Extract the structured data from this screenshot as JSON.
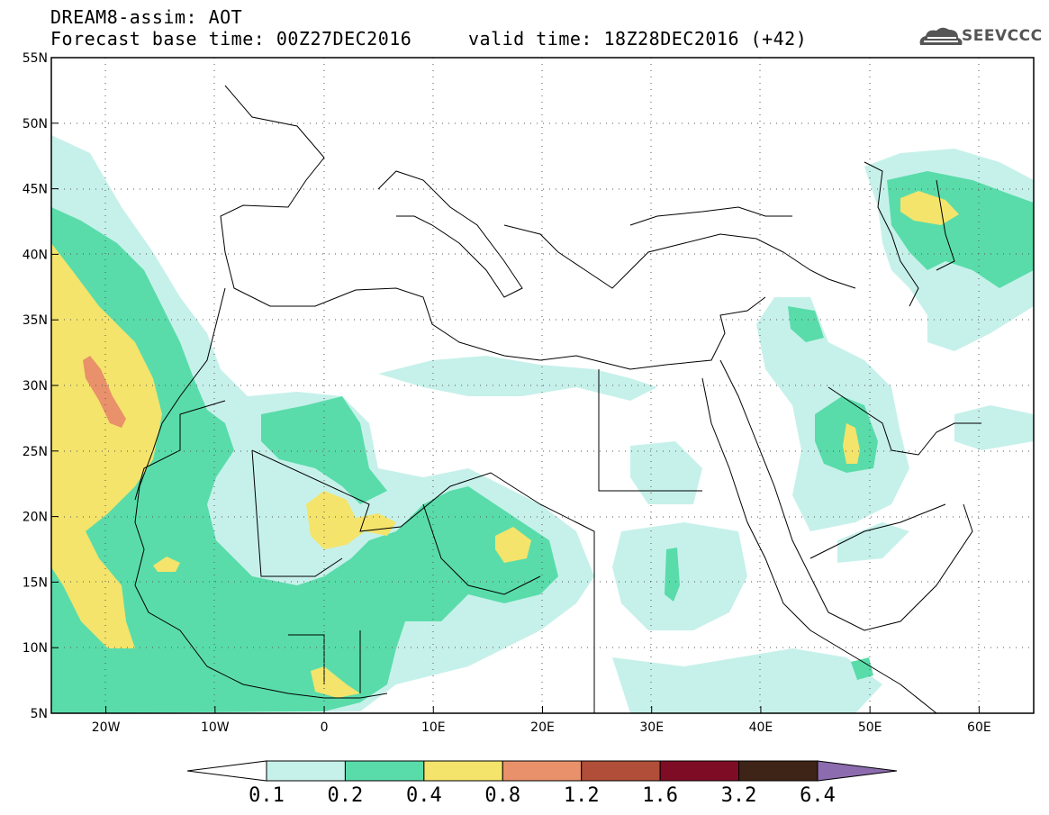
{
  "title_line1": "DREAM8-assim: AOT",
  "title_line2": "Forecast base time: 00Z27DEC2016     valid time: 18Z28DEC2016 (+42)",
  "logo_text": "SEEVCCC",
  "map": {
    "lon_range": [
      -25,
      65
    ],
    "lat_range": [
      5,
      55
    ],
    "lon_ticks": [
      {
        "value": -20,
        "label": "20W"
      },
      {
        "value": -10,
        "label": "10W"
      },
      {
        "value": 0,
        "label": "0"
      },
      {
        "value": 10,
        "label": "10E"
      },
      {
        "value": 20,
        "label": "20E"
      },
      {
        "value": 30,
        "label": "30E"
      },
      {
        "value": 40,
        "label": "40E"
      },
      {
        "value": 50,
        "label": "50E"
      },
      {
        "value": 60,
        "label": "60E"
      }
    ],
    "lat_ticks": [
      {
        "value": 5,
        "label": "5N"
      },
      {
        "value": 10,
        "label": "10N"
      },
      {
        "value": 15,
        "label": "15N"
      },
      {
        "value": 20,
        "label": "20N"
      },
      {
        "value": 25,
        "label": "25N"
      },
      {
        "value": 30,
        "label": "30N"
      },
      {
        "value": 35,
        "label": "35N"
      },
      {
        "value": 40,
        "label": "40N"
      },
      {
        "value": 45,
        "label": "45N"
      },
      {
        "value": 50,
        "label": "50N"
      },
      {
        "value": 55,
        "label": "55N"
      }
    ],
    "grid": "dotted"
  },
  "colorbar": {
    "labels": [
      "0.1",
      "0.2",
      "0.4",
      "0.8",
      "1.2",
      "1.6",
      "3.2",
      "6.4"
    ],
    "colors": [
      "#ffffff",
      "#c6f1ea",
      "#59dcaa",
      "#f4e46b",
      "#e9916a",
      "#b04e3a",
      "#7e0c25",
      "#3e2416",
      "#8c6cae"
    ]
  }
}
